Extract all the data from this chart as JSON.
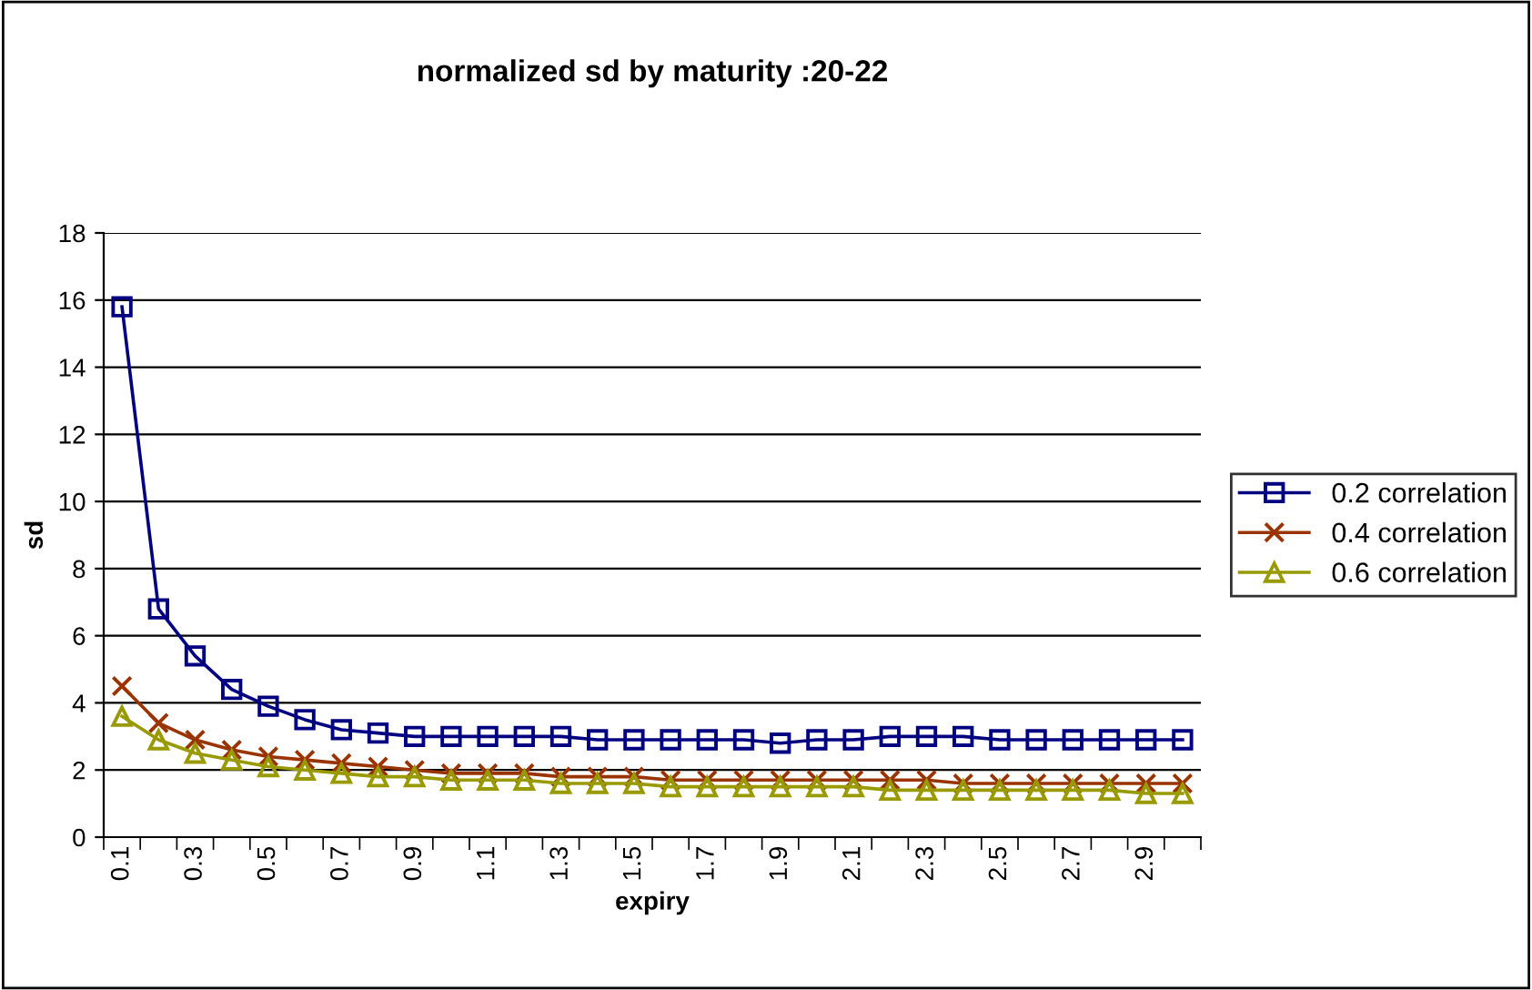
{
  "chart_data": {
    "type": "line",
    "title": "normalized sd by maturity :20-22",
    "xlabel": "expiry",
    "ylabel": "sd",
    "categories": [
      "0.1",
      null,
      "0.3",
      null,
      "0.5",
      null,
      "0.7",
      null,
      "0.9",
      null,
      "1.1",
      null,
      "1.3",
      null,
      "1.5",
      null,
      "1.7",
      null,
      "1.9",
      null,
      "2.1",
      null,
      "2.3",
      null,
      "2.5",
      null,
      "2.7",
      null,
      "2.9",
      null
    ],
    "series": [
      {
        "name": "0.2 correlation",
        "color": "#000080",
        "marker": "square",
        "values": [
          15.8,
          6.8,
          5.4,
          4.4,
          3.9,
          3.5,
          3.2,
          3.1,
          3.0,
          3.0,
          3.0,
          3.0,
          3.0,
          2.9,
          2.9,
          2.9,
          2.9,
          2.9,
          2.8,
          2.9,
          2.9,
          3.0,
          3.0,
          3.0,
          2.9,
          2.9,
          2.9,
          2.9,
          2.9,
          2.9
        ]
      },
      {
        "name": "0.4 correlation",
        "color": "#993300",
        "marker": "cross",
        "values": [
          4.5,
          3.4,
          2.9,
          2.6,
          2.4,
          2.3,
          2.2,
          2.1,
          2.0,
          1.9,
          1.9,
          1.9,
          1.8,
          1.8,
          1.8,
          1.7,
          1.7,
          1.7,
          1.7,
          1.7,
          1.7,
          1.7,
          1.7,
          1.6,
          1.6,
          1.6,
          1.6,
          1.6,
          1.6,
          1.6
        ]
      },
      {
        "name": "0.6 correlation",
        "color": "#999900",
        "marker": "triangle",
        "values": [
          3.6,
          2.9,
          2.5,
          2.3,
          2.1,
          2.0,
          1.9,
          1.8,
          1.8,
          1.7,
          1.7,
          1.7,
          1.6,
          1.6,
          1.6,
          1.5,
          1.5,
          1.5,
          1.5,
          1.5,
          1.5,
          1.4,
          1.4,
          1.4,
          1.4,
          1.4,
          1.4,
          1.4,
          1.3,
          1.3
        ]
      }
    ],
    "ylim": [
      0,
      18
    ],
    "yticks": [
      0,
      2,
      4,
      6,
      8,
      10,
      12,
      14,
      16,
      18
    ],
    "grid": "y",
    "legend": "right"
  }
}
